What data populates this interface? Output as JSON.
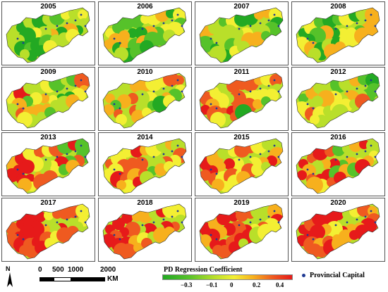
{
  "panels": [
    {
      "year": "2005"
    },
    {
      "year": "2006"
    },
    {
      "year": "2007"
    },
    {
      "year": "2008"
    },
    {
      "year": "2009"
    },
    {
      "year": "2010"
    },
    {
      "year": "2011"
    },
    {
      "year": "2012"
    },
    {
      "year": "2013"
    },
    {
      "year": "2014"
    },
    {
      "year": "2015"
    },
    {
      "year": "2016"
    },
    {
      "year": "2017"
    },
    {
      "year": "2018"
    },
    {
      "year": "2019"
    },
    {
      "year": "2020"
    }
  ],
  "legend": {
    "title": "PD Regression Coefficient",
    "ticks": [
      "−0.3",
      "−0.1",
      "0",
      "0.2",
      "0.4"
    ],
    "colors": [
      "#23a923",
      "#56c22a",
      "#b9df2a",
      "#f3ef33",
      "#f7b01d",
      "#ef5a20",
      "#e61a1a"
    ],
    "capital_label": "Provincial Capital",
    "capital_color": "#1f3a93"
  },
  "scalebar": {
    "labels": [
      "0",
      "500",
      "1000",
      "2000"
    ],
    "unit": "KM"
  },
  "north_arrow": {
    "label": "N"
  }
}
